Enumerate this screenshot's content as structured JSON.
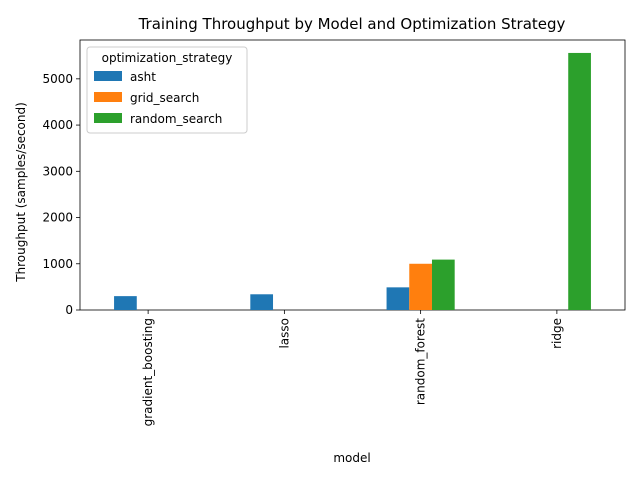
{
  "chart_data": {
    "type": "bar",
    "title": "Training Throughput by Model and Optimization Strategy",
    "xlabel": "model",
    "ylabel": "Throughput (samples/second)",
    "categories": [
      "gradient_boosting",
      "lasso",
      "random_forest",
      "ridge"
    ],
    "series": [
      {
        "name": "asht",
        "color": "#1f77b4",
        "values": [
          300,
          340,
          490,
          null
        ]
      },
      {
        "name": "grid_search",
        "color": "#ff7f0e",
        "values": [
          null,
          null,
          1000,
          null
        ]
      },
      {
        "name": "random_search",
        "color": "#2ca02c",
        "values": [
          null,
          null,
          1090,
          5560
        ]
      }
    ],
    "ylim": [
      0,
      5840
    ],
    "yticks": [
      0,
      1000,
      2000,
      3000,
      4000,
      5000
    ],
    "legend": {
      "title": "optimization_strategy",
      "placement": "top-left"
    },
    "grid": false
  }
}
